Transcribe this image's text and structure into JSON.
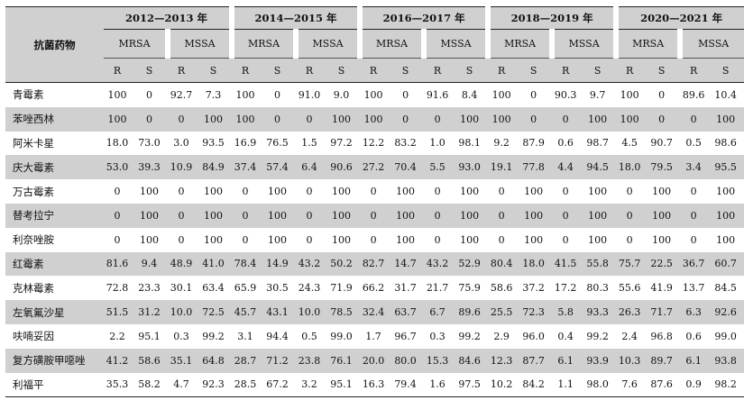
{
  "table": {
    "drug_header": "抗菌药物",
    "periods": [
      "2012—2013 年",
      "2014—2015 年",
      "2016—2017 年",
      "2018—2019 年",
      "2020—2021 年"
    ],
    "groups": [
      "MRSA",
      "MSSA"
    ],
    "subcols": [
      "R",
      "S"
    ],
    "rows": [
      {
        "drug": "青霉素",
        "values": [
          "100",
          "0",
          "92.7",
          "7.3",
          "100",
          "0",
          "91.0",
          "9.0",
          "100",
          "0",
          "91.6",
          "8.4",
          "100",
          "0",
          "90.3",
          "9.7",
          "100",
          "0",
          "89.6",
          "10.4"
        ]
      },
      {
        "drug": "苯唑西林",
        "values": [
          "100",
          "0",
          "0",
          "100",
          "100",
          "0",
          "0",
          "100",
          "100",
          "0",
          "0",
          "100",
          "100",
          "0",
          "0",
          "100",
          "100",
          "0",
          "0",
          "100"
        ]
      },
      {
        "drug": "阿米卡星",
        "values": [
          "18.0",
          "73.0",
          "3.0",
          "93.5",
          "16.9",
          "76.5",
          "1.5",
          "97.2",
          "12.2",
          "83.2",
          "1.0",
          "98.1",
          "9.2",
          "87.9",
          "0.6",
          "98.7",
          "4.5",
          "90.7",
          "0.5",
          "98.6"
        ]
      },
      {
        "drug": "庆大霉素",
        "values": [
          "53.0",
          "39.3",
          "10.9",
          "84.9",
          "37.4",
          "57.4",
          "6.4",
          "90.6",
          "27.2",
          "70.4",
          "5.5",
          "93.0",
          "19.1",
          "77.8",
          "4.4",
          "94.5",
          "18.0",
          "79.5",
          "3.4",
          "95.5"
        ]
      },
      {
        "drug": "万古霉素",
        "values": [
          "0",
          "100",
          "0",
          "100",
          "0",
          "100",
          "0",
          "100",
          "0",
          "100",
          "0",
          "100",
          "0",
          "100",
          "0",
          "100",
          "0",
          "100",
          "0",
          "100"
        ]
      },
      {
        "drug": "替考拉宁",
        "values": [
          "0",
          "100",
          "0",
          "100",
          "0",
          "100",
          "0",
          "100",
          "0",
          "100",
          "0",
          "100",
          "0",
          "100",
          "0",
          "100",
          "0",
          "100",
          "0",
          "100"
        ]
      },
      {
        "drug": "利奈唑胺",
        "values": [
          "0",
          "100",
          "0",
          "100",
          "0",
          "100",
          "0",
          "100",
          "0",
          "100",
          "0",
          "100",
          "0",
          "100",
          "0",
          "100",
          "0",
          "100",
          "0",
          "100"
        ]
      },
      {
        "drug": "红霉素",
        "values": [
          "81.6",
          "9.4",
          "48.9",
          "41.0",
          "78.4",
          "14.9",
          "43.2",
          "50.2",
          "82.7",
          "14.7",
          "43.2",
          "52.9",
          "80.4",
          "18.0",
          "41.5",
          "55.8",
          "75.7",
          "22.5",
          "36.7",
          "60.7"
        ]
      },
      {
        "drug": "克林霉素",
        "values": [
          "72.8",
          "23.3",
          "30.1",
          "63.4",
          "65.9",
          "30.5",
          "24.3",
          "71.9",
          "66.2",
          "31.7",
          "21.7",
          "75.9",
          "58.6",
          "37.2",
          "17.2",
          "80.3",
          "55.6",
          "41.9",
          "13.7",
          "84.5"
        ]
      },
      {
        "drug": "左氧氟沙星",
        "values": [
          "51.5",
          "31.2",
          "10.0",
          "72.5",
          "45.7",
          "43.1",
          "10.0",
          "78.5",
          "32.4",
          "63.7",
          "6.7",
          "89.6",
          "25.5",
          "72.3",
          "5.8",
          "93.3",
          "26.3",
          "71.7",
          "6.3",
          "92.6"
        ]
      },
      {
        "drug": "呋喃妥因",
        "values": [
          "2.2",
          "95.1",
          "0.3",
          "99.2",
          "3.1",
          "94.4",
          "0.5",
          "99.0",
          "1.7",
          "96.7",
          "0.3",
          "99.2",
          "2.9",
          "96.0",
          "0.4",
          "99.2",
          "2.4",
          "96.8",
          "0.6",
          "99.0"
        ]
      },
      {
        "drug": "复方磺胺甲噁唑",
        "values": [
          "41.2",
          "58.6",
          "35.1",
          "64.8",
          "28.7",
          "71.2",
          "23.8",
          "76.1",
          "20.0",
          "80.0",
          "15.3",
          "84.6",
          "12.3",
          "87.7",
          "6.1",
          "93.9",
          "10.3",
          "89.7",
          "6.1",
          "93.8"
        ]
      },
      {
        "drug": "利福平",
        "values": [
          "35.3",
          "58.2",
          "4.7",
          "92.3",
          "28.5",
          "67.2",
          "3.2",
          "95.1",
          "16.3",
          "79.4",
          "1.6",
          "97.5",
          "10.2",
          "84.2",
          "1.1",
          "98.0",
          "7.6",
          "87.6",
          "0.9",
          "98.2"
        ]
      }
    ]
  }
}
